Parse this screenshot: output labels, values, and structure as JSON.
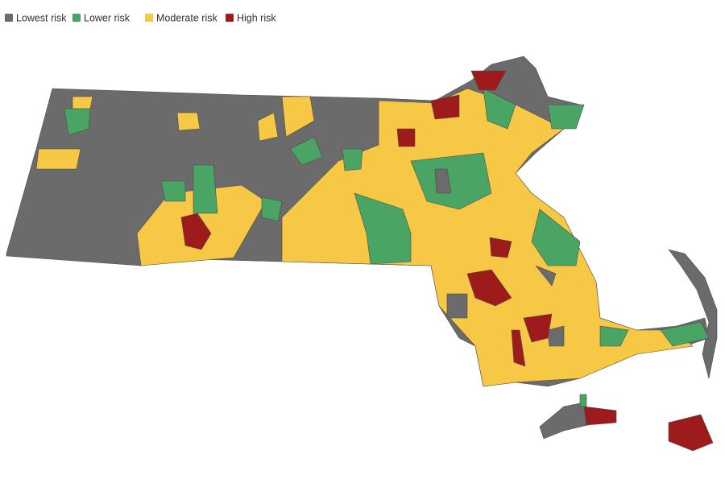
{
  "legend": {
    "items": [
      {
        "name": "Lowest risk",
        "color": "#6b6b6b"
      },
      {
        "name": "Lower risk",
        "color": "#4aa564"
      },
      {
        "name": "Moderate risk",
        "color": "#f7c845"
      },
      {
        "name": "High risk",
        "color": "#9e1b1b"
      }
    ]
  }
}
